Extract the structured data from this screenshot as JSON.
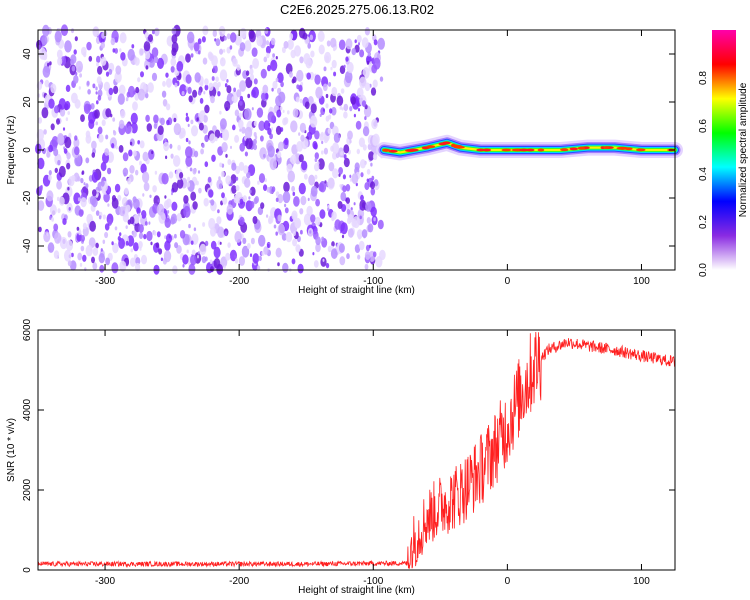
{
  "title": "C2E6.2025.275.06.13.R02",
  "chart_data": [
    {
      "type": "heatmap",
      "xlabel": "Height of straight line (km)",
      "ylabel": "Frequency (Hz)",
      "xlim": [
        -350,
        125
      ],
      "ylim": [
        -50,
        50
      ],
      "x_ticks": [
        -300,
        -200,
        -100,
        0,
        100
      ],
      "y_ticks": [
        -40,
        -20,
        0,
        20,
        40
      ],
      "noise_region_x": [
        -350,
        -93
      ],
      "signal_track": [
        {
          "x": -92,
          "y": 0
        },
        {
          "x": -80,
          "y": -1
        },
        {
          "x": -70,
          "y": 0
        },
        {
          "x": -60,
          "y": 1
        },
        {
          "x": -45,
          "y": 3
        },
        {
          "x": -35,
          "y": 1
        },
        {
          "x": -20,
          "y": 0
        },
        {
          "x": 0,
          "y": 0
        },
        {
          "x": 20,
          "y": 0
        },
        {
          "x": 40,
          "y": 0
        },
        {
          "x": 60,
          "y": 1
        },
        {
          "x": 80,
          "y": 1
        },
        {
          "x": 100,
          "y": 0
        },
        {
          "x": 125,
          "y": 0
        }
      ],
      "colorbar": {
        "label": "Normalized spectral amplitude",
        "range": [
          0,
          1
        ],
        "ticks": [
          "0.0",
          "0.2",
          "0.4",
          "0.6",
          "0.8"
        ],
        "colors": [
          "#ffffff",
          "#8a2be2",
          "#0000ff",
          "#00ffff",
          "#00ff00",
          "#ffff00",
          "#ff0000",
          "#ff00aa"
        ]
      }
    },
    {
      "type": "line",
      "xlabel": "Height of straight line (km)",
      "ylabel": "SNR (10 * v/v)",
      "xlim": [
        -350,
        125
      ],
      "ylim": [
        0,
        6000
      ],
      "x_ticks": [
        -300,
        -200,
        -100,
        0,
        100
      ],
      "y_ticks": [
        0,
        2000,
        4000,
        6000
      ],
      "color": "#ff2020",
      "points": [
        {
          "x": -350,
          "y": 150
        },
        {
          "x": -250,
          "y": 150
        },
        {
          "x": -150,
          "y": 150
        },
        {
          "x": -75,
          "y": 170
        },
        {
          "x": -70,
          "y": 700
        },
        {
          "x": -60,
          "y": 1300
        },
        {
          "x": -50,
          "y": 1600
        },
        {
          "x": -40,
          "y": 1800
        },
        {
          "x": -30,
          "y": 2100
        },
        {
          "x": -20,
          "y": 2500
        },
        {
          "x": -10,
          "y": 3000
        },
        {
          "x": 0,
          "y": 3600
        },
        {
          "x": 10,
          "y": 4400
        },
        {
          "x": 20,
          "y": 5100
        },
        {
          "x": 30,
          "y": 5500
        },
        {
          "x": 45,
          "y": 5700
        },
        {
          "x": 60,
          "y": 5600
        },
        {
          "x": 80,
          "y": 5500
        },
        {
          "x": 100,
          "y": 5350
        },
        {
          "x": 125,
          "y": 5200
        }
      ]
    }
  ]
}
